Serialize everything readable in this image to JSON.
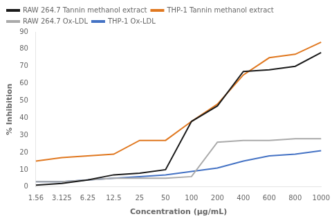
{
  "chart_data": {
    "type": "line",
    "xlabel": "Concentration (μg/mL)",
    "ylabel": "% Inhibition",
    "categories": [
      "1.56",
      "3.125",
      "6.25",
      "12.5",
      "25",
      "50",
      "100",
      "200",
      "400",
      "600",
      "800",
      "1000"
    ],
    "series": [
      {
        "name": "RAW 264.7 Tannin methanol extract",
        "color": "#1a1a1a",
        "values": [
          1,
          2,
          4,
          7,
          8,
          10,
          38,
          47,
          67,
          68,
          70,
          78
        ]
      },
      {
        "name": "THP-1 Tannin methanol extract",
        "color": "#E07820",
        "values": [
          15,
          17,
          18,
          19,
          27,
          27,
          38,
          48,
          65,
          75,
          77,
          84
        ]
      },
      {
        "name": "RAW 264.7 Ox-LDL",
        "color": "#aaaaaa",
        "values": [
          3,
          3,
          4,
          5,
          5,
          5,
          6,
          26,
          27,
          27,
          28,
          28
        ]
      },
      {
        "name": "THP-1 Ox-LDL",
        "color": "#4472C4",
        "values": [
          3,
          3,
          4,
          5,
          6,
          7,
          9,
          11,
          15,
          18,
          19,
          21
        ]
      }
    ],
    "ylim": [
      0,
      90
    ],
    "yticks": [
      0,
      10,
      20,
      30,
      40,
      50,
      60,
      70,
      80,
      90
    ],
    "grid": false,
    "legend": "upper left"
  }
}
